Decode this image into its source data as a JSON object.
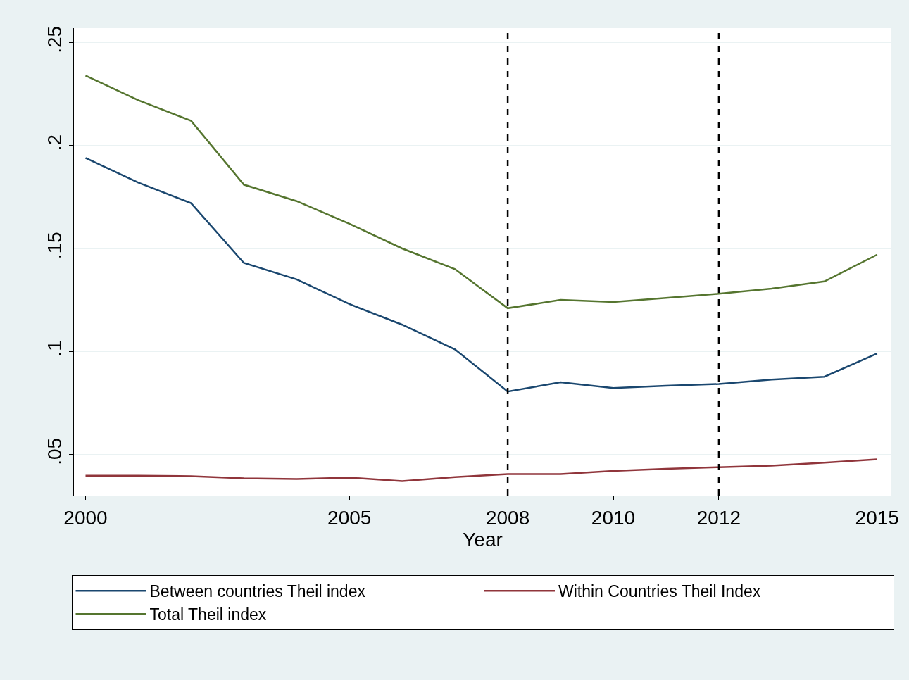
{
  "chart_data": {
    "type": "line",
    "xlabel": "Year",
    "x": [
      2000,
      2001,
      2002,
      2003,
      2004,
      2005,
      2006,
      2007,
      2008,
      2009,
      2010,
      2011,
      2012,
      2013,
      2014,
      2015
    ],
    "series": [
      {
        "name": "Between countries Theil index",
        "color": "#1a476f",
        "values": [
          0.194,
          0.182,
          0.172,
          0.143,
          0.135,
          0.123,
          0.113,
          0.101,
          0.0805,
          0.085,
          0.0822,
          0.0833,
          0.0842,
          0.0863,
          0.0877,
          0.099
        ]
      },
      {
        "name": "Within Countries Theil Index",
        "color": "#90353b",
        "values": [
          0.0397,
          0.0397,
          0.0394,
          0.0384,
          0.038,
          0.0387,
          0.037,
          0.039,
          0.0404,
          0.0404,
          0.042,
          0.043,
          0.0438,
          0.0445,
          0.046,
          0.0476
        ]
      },
      {
        "name": "Total Theil index",
        "color": "#55752f",
        "values": [
          0.234,
          0.222,
          0.212,
          0.181,
          0.173,
          0.162,
          0.15,
          0.14,
          0.121,
          0.125,
          0.124,
          0.126,
          0.128,
          0.1305,
          0.134,
          0.147
        ]
      }
    ],
    "xlim": [
      1999.78,
      2015.27
    ],
    "xticks": [
      2000,
      2005,
      2008,
      2010,
      2012,
      2015
    ],
    "ylim": [
      0.03,
      0.257
    ],
    "yticks": [
      {
        "value": 0.05,
        "label": ".05"
      },
      {
        "value": 0.1,
        "label": ".1"
      },
      {
        "value": 0.15,
        "label": ".15"
      },
      {
        "value": 0.2,
        "label": ".2"
      },
      {
        "value": 0.25,
        "label": ".25"
      }
    ],
    "ref_lines": [
      {
        "axis": "x",
        "value": 2008,
        "color": "#000000",
        "line_style": "dashed"
      },
      {
        "axis": "x",
        "value": 2012,
        "color": "#000000",
        "line_style": "dashed"
      }
    ],
    "grid": "y",
    "legend": "bottom",
    "marker": "none",
    "line_style": "solid"
  }
}
